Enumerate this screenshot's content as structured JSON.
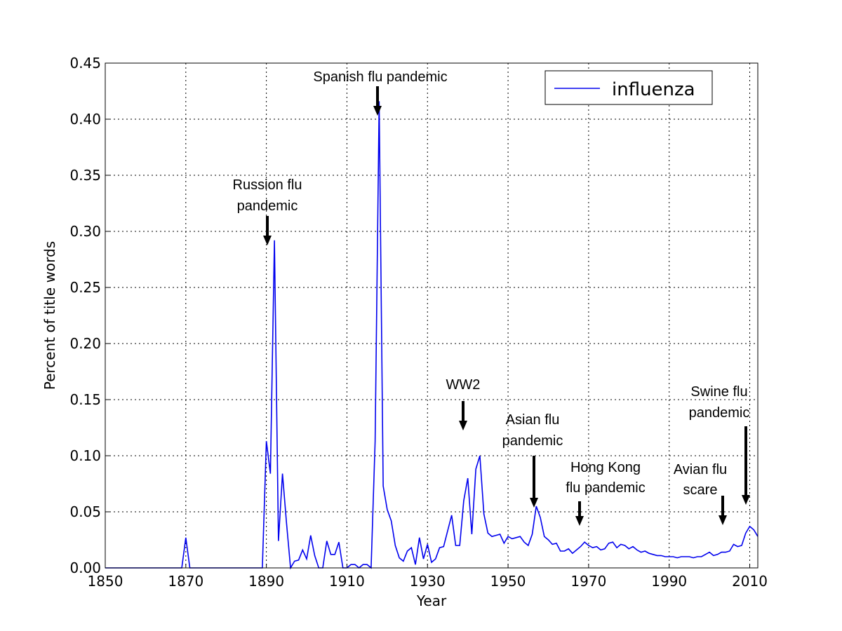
{
  "chart_data": {
    "type": "line",
    "xlabel": "Year",
    "ylabel": "Percent of title words",
    "xlim": [
      1850,
      2012
    ],
    "ylim": [
      0,
      0.45
    ],
    "xticks": [
      1850,
      1870,
      1890,
      1910,
      1930,
      1950,
      1970,
      1990,
      2010
    ],
    "yticks": [
      {
        "value": 0,
        "label": "0.00"
      },
      {
        "value": 0.05,
        "label": "0.05"
      },
      {
        "value": 0.1,
        "label": "0.10"
      },
      {
        "value": 0.15,
        "label": "0.15"
      },
      {
        "value": 0.2,
        "label": "0.20"
      },
      {
        "value": 0.25,
        "label": "0.25"
      },
      {
        "value": 0.3,
        "label": "0.30"
      },
      {
        "value": 0.35,
        "label": "0.35"
      },
      {
        "value": 0.4,
        "label": "0.40"
      },
      {
        "value": 0.45,
        "label": "0.45"
      }
    ],
    "grid": true,
    "legend": "upper right",
    "x": [
      1850,
      1851,
      1852,
      1853,
      1854,
      1855,
      1856,
      1857,
      1858,
      1859,
      1860,
      1861,
      1862,
      1863,
      1864,
      1865,
      1866,
      1867,
      1868,
      1869,
      1870,
      1871,
      1872,
      1873,
      1874,
      1875,
      1876,
      1877,
      1878,
      1879,
      1880,
      1881,
      1882,
      1883,
      1884,
      1885,
      1886,
      1887,
      1888,
      1889,
      1890,
      1891,
      1892,
      1893,
      1894,
      1895,
      1896,
      1897,
      1898,
      1899,
      1900,
      1901,
      1902,
      1903,
      1904,
      1905,
      1906,
      1907,
      1908,
      1909,
      1910,
      1911,
      1912,
      1913,
      1914,
      1915,
      1916,
      1917,
      1918,
      1919,
      1920,
      1921,
      1922,
      1923,
      1924,
      1925,
      1926,
      1927,
      1928,
      1929,
      1930,
      1931,
      1932,
      1933,
      1934,
      1935,
      1936,
      1937,
      1938,
      1939,
      1940,
      1941,
      1942,
      1943,
      1944,
      1945,
      1946,
      1947,
      1948,
      1949,
      1950,
      1951,
      1952,
      1953,
      1954,
      1955,
      1956,
      1957,
      1958,
      1959,
      1960,
      1961,
      1962,
      1963,
      1964,
      1965,
      1966,
      1967,
      1968,
      1969,
      1970,
      1971,
      1972,
      1973,
      1974,
      1975,
      1976,
      1977,
      1978,
      1979,
      1980,
      1981,
      1982,
      1983,
      1984,
      1985,
      1986,
      1987,
      1988,
      1989,
      1990,
      1991,
      1992,
      1993,
      1994,
      1995,
      1996,
      1997,
      1998,
      1999,
      2000,
      2001,
      2002,
      2003,
      2004,
      2005,
      2006,
      2007,
      2008,
      2009,
      2010,
      2011,
      2012
    ],
    "series": [
      {
        "name": "influenza",
        "color": "#0000ee",
        "values": [
          0,
          0,
          0,
          0,
          0,
          0,
          0,
          0,
          0,
          0,
          0,
          0,
          0,
          0,
          0,
          0,
          0,
          0,
          0,
          0,
          0.027,
          0,
          0,
          0,
          0,
          0,
          0,
          0,
          0,
          0,
          0,
          0,
          0,
          0,
          0,
          0,
          0,
          0,
          0,
          0,
          0.113,
          0.084,
          0.292,
          0.024,
          0.084,
          0.04,
          0,
          0.006,
          0.007,
          0.016,
          0.008,
          0.029,
          0.011,
          0,
          0,
          0.024,
          0.012,
          0.012,
          0.023,
          0,
          0,
          0.003,
          0.003,
          0,
          0.003,
          0.003,
          0,
          0.113,
          0.416,
          0.073,
          0.052,
          0.042,
          0.02,
          0.009,
          0.006,
          0.015,
          0.018,
          0.003,
          0.027,
          0.008,
          0.021,
          0.005,
          0.008,
          0.018,
          0.019,
          0.033,
          0.047,
          0.02,
          0.02,
          0.06,
          0.08,
          0.03,
          0.088,
          0.1,
          0.048,
          0.031,
          0.028,
          0.029,
          0.03,
          0.022,
          0.028,
          0.026,
          0.027,
          0.028,
          0.023,
          0.02,
          0.03,
          0.055,
          0.045,
          0.028,
          0.025,
          0.021,
          0.022,
          0.015,
          0.015,
          0.017,
          0.013,
          0.016,
          0.019,
          0.023,
          0.02,
          0.018,
          0.019,
          0.016,
          0.017,
          0.022,
          0.023,
          0.018,
          0.021,
          0.02,
          0.017,
          0.019,
          0.016,
          0.014,
          0.015,
          0.013,
          0.012,
          0.011,
          0.011,
          0.01,
          0.01,
          0.01,
          0.009,
          0.01,
          0.01,
          0.01,
          0.009,
          0.01,
          0.01,
          0.012,
          0.014,
          0.011,
          0.012,
          0.014,
          0.014,
          0.015,
          0.021,
          0.019,
          0.02,
          0.031,
          0.037,
          0.034,
          0.028
        ]
      }
    ],
    "annotations": [
      {
        "lines": [
          "Spanish flu pandemic"
        ]
      },
      {
        "lines": [
          "Russion flu",
          "pandemic"
        ]
      },
      {
        "lines": [
          "WW2"
        ]
      },
      {
        "lines": [
          "Asian flu",
          "pandemic"
        ]
      },
      {
        "lines": [
          "Hong Kong",
          "flu pandemic"
        ]
      },
      {
        "lines": [
          "Avian flu",
          "scare"
        ]
      },
      {
        "lines": [
          "Swine flu",
          "pandemic"
        ]
      }
    ]
  }
}
